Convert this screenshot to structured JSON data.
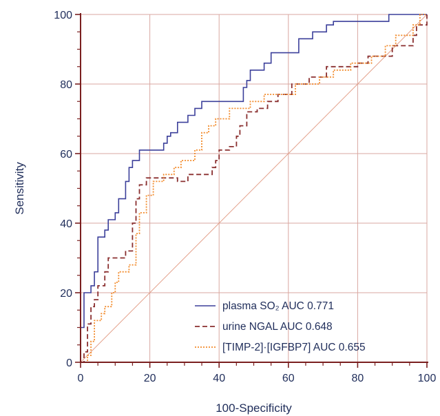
{
  "chart_data": {
    "type": "line",
    "title": "",
    "xlabel": "100-Specificity",
    "ylabel": "Sensitivity",
    "xlim": [
      0,
      100
    ],
    "ylim": [
      0,
      100
    ],
    "x_ticks": [
      "0",
      "20",
      "40",
      "60",
      "80",
      "100"
    ],
    "y_ticks": [
      "0",
      "20",
      "40",
      "60",
      "80",
      "100"
    ],
    "grid": true,
    "legend_position": "bottom-right",
    "reference_line": {
      "from": [
        0,
        0
      ],
      "to": [
        100,
        100
      ],
      "color": "#e3a08a"
    },
    "series": [
      {
        "name": "plasma SO₂ AUC 0.771",
        "color": "#3b3f9a",
        "dash": "solid",
        "points": [
          [
            0,
            0
          ],
          [
            0,
            10
          ],
          [
            1,
            10
          ],
          [
            1,
            20
          ],
          [
            3,
            20
          ],
          [
            3,
            22
          ],
          [
            4,
            22
          ],
          [
            4,
            26
          ],
          [
            5,
            26
          ],
          [
            5,
            36
          ],
          [
            7,
            36
          ],
          [
            7,
            38
          ],
          [
            8,
            38
          ],
          [
            8,
            41
          ],
          [
            10,
            41
          ],
          [
            10,
            43
          ],
          [
            11,
            43
          ],
          [
            11,
            47
          ],
          [
            13,
            47
          ],
          [
            13,
            52
          ],
          [
            14,
            52
          ],
          [
            14,
            56
          ],
          [
            15,
            56
          ],
          [
            15,
            58
          ],
          [
            17,
            58
          ],
          [
            17,
            61
          ],
          [
            24,
            61
          ],
          [
            24,
            63
          ],
          [
            25,
            63
          ],
          [
            25,
            65
          ],
          [
            26,
            65
          ],
          [
            26,
            66
          ],
          [
            28,
            66
          ],
          [
            28,
            69
          ],
          [
            31,
            69
          ],
          [
            31,
            71
          ],
          [
            33,
            71
          ],
          [
            33,
            73
          ],
          [
            35,
            73
          ],
          [
            35,
            75
          ],
          [
            47,
            75
          ],
          [
            47,
            79
          ],
          [
            48,
            79
          ],
          [
            48,
            81
          ],
          [
            49,
            81
          ],
          [
            49,
            84
          ],
          [
            53,
            84
          ],
          [
            53,
            86
          ],
          [
            55,
            86
          ],
          [
            55,
            89
          ],
          [
            63,
            89
          ],
          [
            63,
            93
          ],
          [
            67,
            93
          ],
          [
            67,
            95
          ],
          [
            71,
            95
          ],
          [
            71,
            97
          ],
          [
            73,
            97
          ],
          [
            73,
            98
          ],
          [
            89,
            98
          ],
          [
            89,
            100
          ],
          [
            100,
            100
          ]
        ]
      },
      {
        "name": "urine NGAL AUC 0.648",
        "color": "#8a2f2f",
        "dash": "7,4",
        "points": [
          [
            0,
            0
          ],
          [
            1,
            0
          ],
          [
            1,
            3
          ],
          [
            2,
            3
          ],
          [
            2,
            11
          ],
          [
            3,
            11
          ],
          [
            3,
            16
          ],
          [
            4,
            16
          ],
          [
            4,
            18
          ],
          [
            5,
            18
          ],
          [
            5,
            22
          ],
          [
            7,
            22
          ],
          [
            7,
            26
          ],
          [
            8,
            26
          ],
          [
            8,
            30
          ],
          [
            13,
            30
          ],
          [
            13,
            32
          ],
          [
            15,
            32
          ],
          [
            15,
            40
          ],
          [
            16,
            40
          ],
          [
            16,
            47
          ],
          [
            17,
            47
          ],
          [
            17,
            51
          ],
          [
            19,
            51
          ],
          [
            19,
            53
          ],
          [
            28,
            53
          ],
          [
            28,
            52
          ],
          [
            31,
            52
          ],
          [
            31,
            54
          ],
          [
            38,
            54
          ],
          [
            38,
            56
          ],
          [
            39,
            56
          ],
          [
            39,
            58
          ],
          [
            40,
            58
          ],
          [
            40,
            61
          ],
          [
            43,
            61
          ],
          [
            43,
            62
          ],
          [
            45,
            62
          ],
          [
            45,
            65
          ],
          [
            46,
            65
          ],
          [
            46,
            68
          ],
          [
            48,
            68
          ],
          [
            48,
            72
          ],
          [
            51,
            72
          ],
          [
            51,
            73
          ],
          [
            54,
            73
          ],
          [
            54,
            75
          ],
          [
            57,
            75
          ],
          [
            57,
            77
          ],
          [
            61,
            77
          ],
          [
            61,
            80
          ],
          [
            66,
            80
          ],
          [
            66,
            82
          ],
          [
            71,
            82
          ],
          [
            71,
            85
          ],
          [
            80,
            85
          ],
          [
            80,
            86
          ],
          [
            83,
            86
          ],
          [
            83,
            88
          ],
          [
            90,
            88
          ],
          [
            90,
            91
          ],
          [
            96,
            91
          ],
          [
            96,
            94
          ],
          [
            97,
            94
          ],
          [
            97,
            97
          ],
          [
            100,
            97
          ],
          [
            100,
            100
          ]
        ]
      },
      {
        "name": "[TIMP-2]·[IGFBP7] AUC 0.655",
        "color": "#f28a2a",
        "dash": "2,2",
        "points": [
          [
            0,
            0
          ],
          [
            2,
            0
          ],
          [
            2,
            2
          ],
          [
            3,
            2
          ],
          [
            3,
            6
          ],
          [
            4,
            6
          ],
          [
            4,
            12
          ],
          [
            6,
            12
          ],
          [
            6,
            14
          ],
          [
            7,
            14
          ],
          [
            7,
            16
          ],
          [
            9,
            16
          ],
          [
            9,
            20
          ],
          [
            10,
            20
          ],
          [
            10,
            23
          ],
          [
            11,
            23
          ],
          [
            11,
            26
          ],
          [
            14,
            26
          ],
          [
            14,
            28
          ],
          [
            16,
            28
          ],
          [
            16,
            37
          ],
          [
            17,
            37
          ],
          [
            17,
            43
          ],
          [
            19,
            43
          ],
          [
            19,
            48
          ],
          [
            21,
            48
          ],
          [
            21,
            52
          ],
          [
            24,
            52
          ],
          [
            24,
            54
          ],
          [
            27,
            54
          ],
          [
            27,
            56
          ],
          [
            29,
            56
          ],
          [
            29,
            58
          ],
          [
            33,
            58
          ],
          [
            33,
            61
          ],
          [
            35,
            61
          ],
          [
            35,
            66
          ],
          [
            37,
            66
          ],
          [
            37,
            68
          ],
          [
            39,
            68
          ],
          [
            39,
            70
          ],
          [
            43,
            70
          ],
          [
            43,
            73
          ],
          [
            49,
            73
          ],
          [
            49,
            75
          ],
          [
            53,
            75
          ],
          [
            53,
            77
          ],
          [
            62,
            77
          ],
          [
            62,
            80
          ],
          [
            69,
            80
          ],
          [
            69,
            82
          ],
          [
            73,
            82
          ],
          [
            73,
            84
          ],
          [
            78,
            84
          ],
          [
            78,
            86
          ],
          [
            84,
            86
          ],
          [
            84,
            88
          ],
          [
            88,
            88
          ],
          [
            88,
            91
          ],
          [
            91,
            91
          ],
          [
            91,
            94
          ],
          [
            96,
            94
          ],
          [
            96,
            97
          ],
          [
            98,
            97
          ],
          [
            98,
            100
          ],
          [
            100,
            100
          ]
        ]
      }
    ]
  }
}
